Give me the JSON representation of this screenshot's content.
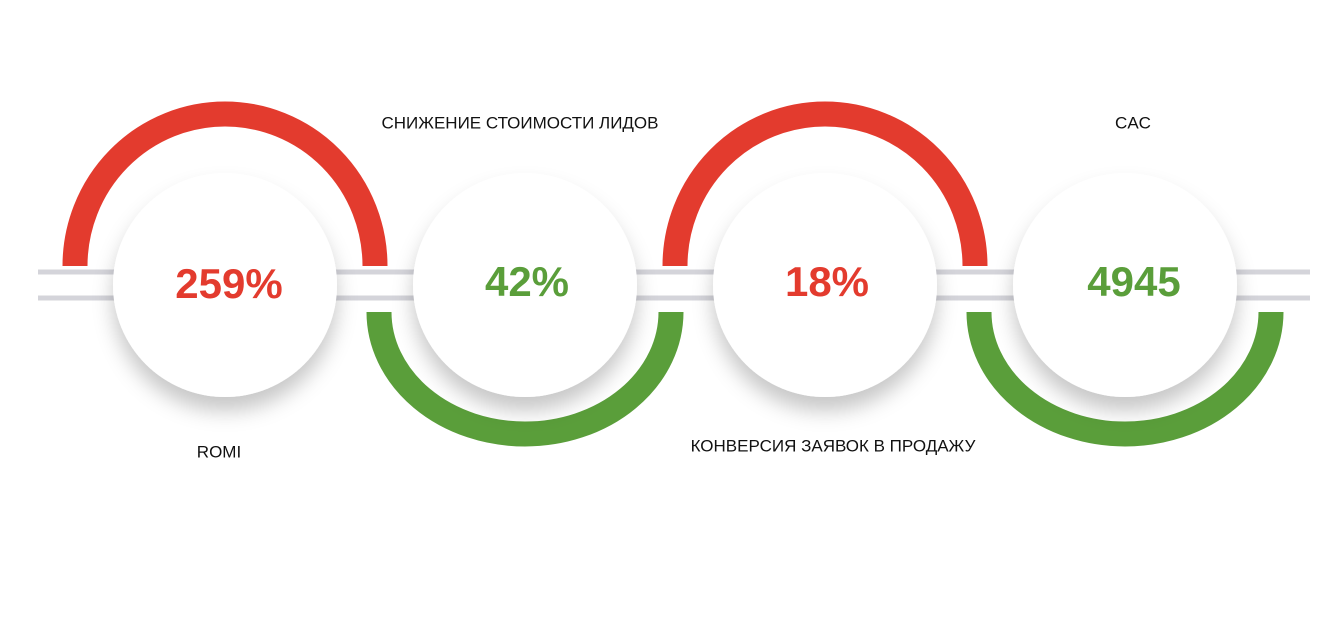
{
  "items": [
    {
      "value": "259%",
      "label": "ROMI"
    },
    {
      "value": "42%",
      "label": "СНИЖЕНИЕ СТОИМОСТИ ЛИДОВ"
    },
    {
      "value": "18%",
      "label": "КОНВЕРСИЯ ЗАЯВОК В ПРОДАЖУ"
    },
    {
      "value": "4945",
      "label": "CAC"
    }
  ]
}
